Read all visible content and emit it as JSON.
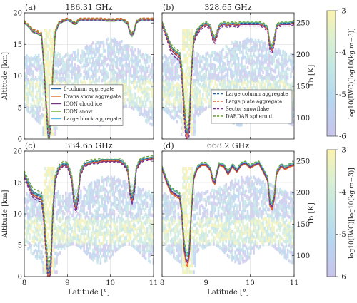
{
  "chart_data": {
    "type": "line",
    "panels": [
      {
        "label": "(a)",
        "title": "186.31 GHz",
        "legend": "left"
      },
      {
        "label": "(b)",
        "title": "328.65 GHz",
        "legend": "right"
      },
      {
        "label": "(c)",
        "title": "334.65 GHz",
        "legend": null
      },
      {
        "label": "(d)",
        "title": "668.2 GHz",
        "legend": null
      }
    ],
    "xlabel": "Latitude [°]",
    "ylabel_left": "Altitude [km]",
    "ylabel_right": "Tb [K]",
    "colorbar_label": "log10(IWC)[log10(kg m−3)]",
    "colorbar_ticks": [
      "-3",
      "-4",
      "-5",
      "-6"
    ],
    "colorbar_range": [
      -6,
      -3
    ],
    "xlim": [
      8,
      11
    ],
    "xticks": [
      "8",
      "9",
      "10",
      "11"
    ],
    "ylim_altitude": [
      0,
      20
    ],
    "yticks_altitude": [
      "0",
      "5",
      "10",
      "15",
      "20"
    ],
    "ylim_tb": [
      66.5,
      266
    ],
    "yticks_tb": [
      "100",
      "150",
      "200",
      "250"
    ],
    "grid": true,
    "series": [
      {
        "name": "8-column aggregate",
        "color": "#1f62a8",
        "dash": "solid"
      },
      {
        "name": "Evans snow aggregate",
        "color": "#e0662a",
        "dash": "solid"
      },
      {
        "name": "ICON cloud ice",
        "color": "#7a2f8a",
        "dash": "solid"
      },
      {
        "name": "ICON snow",
        "color": "#6aa534",
        "dash": "solid"
      },
      {
        "name": "Large block aggregate",
        "color": "#5bbde4",
        "dash": "solid"
      },
      {
        "name": "Large column aggregate",
        "color": "#1f62a8",
        "dash": "dashed"
      },
      {
        "name": "Large plate aggregate",
        "color": "#e0662a",
        "dash": "dashed"
      },
      {
        "name": "Sector snowflake",
        "color": "#7a2f8a",
        "dash": "dashed"
      },
      {
        "name": "DARDAR spheroid",
        "color": "#6aa534",
        "dash": "dashed"
      }
    ],
    "tb_profile": {
      "x": [
        8.0,
        8.1,
        8.2,
        8.3,
        8.4,
        8.45,
        8.5,
        8.55,
        8.58,
        8.62,
        8.66,
        8.72,
        8.8,
        8.9,
        9.0,
        9.1,
        9.15,
        9.2,
        9.25,
        9.3,
        9.4,
        9.5,
        9.6,
        9.7,
        9.8,
        9.9,
        10.0,
        10.1,
        10.2,
        10.3,
        10.4,
        10.45,
        10.5,
        10.55,
        10.6,
        10.7,
        10.8,
        10.9,
        11.0
      ],
      "panels": {
        "a": [
          252,
          246,
          238,
          236,
          232,
          190,
          130,
          80,
          78,
          96,
          170,
          236,
          250,
          254,
          256,
          253,
          250,
          250,
          254,
          256,
          256,
          256,
          256,
          256,
          256,
          255,
          255,
          255,
          256,
          255,
          250,
          236,
          232,
          238,
          252,
          256,
          256,
          256,
          256
        ],
        "b": [
          250,
          232,
          212,
          205,
          200,
          175,
          120,
          80,
          76,
          95,
          170,
          225,
          238,
          246,
          250,
          244,
          230,
          225,
          235,
          246,
          250,
          248,
          250,
          248,
          250,
          250,
          250,
          250,
          250,
          248,
          242,
          215,
          210,
          225,
          246,
          250,
          250,
          250,
          252
        ],
        "c": [
          230,
          214,
          200,
          196,
          194,
          168,
          120,
          75,
          72,
          95,
          168,
          225,
          240,
          246,
          245,
          225,
          190,
          178,
          196,
          232,
          246,
          248,
          250,
          250,
          252,
          252,
          252,
          252,
          252,
          248,
          238,
          205,
          190,
          205,
          240,
          252,
          254,
          255,
          256
        ],
        "d": [
          240,
          220,
          205,
          200,
          196,
          168,
          118,
          98,
          95,
          110,
          165,
          225,
          240,
          246,
          246,
          238,
          222,
          218,
          234,
          246,
          244,
          232,
          244,
          236,
          246,
          248,
          242,
          246,
          248,
          236,
          222,
          185,
          180,
          195,
          232,
          244,
          240,
          244,
          246
        ]
      },
      "spread_K": [
        [
          0,
          0,
          -5,
          -6,
          -4,
          3,
          5,
          -4,
          2
        ],
        [
          1,
          -2,
          -6,
          2,
          0,
          -1,
          -4,
          -12,
          6
        ],
        [
          2,
          -3,
          -6,
          1,
          0,
          -1,
          -4,
          -10,
          8
        ],
        [
          2,
          -7,
          -4,
          2,
          3,
          -2,
          -5,
          -3,
          5
        ]
      ]
    }
  }
}
